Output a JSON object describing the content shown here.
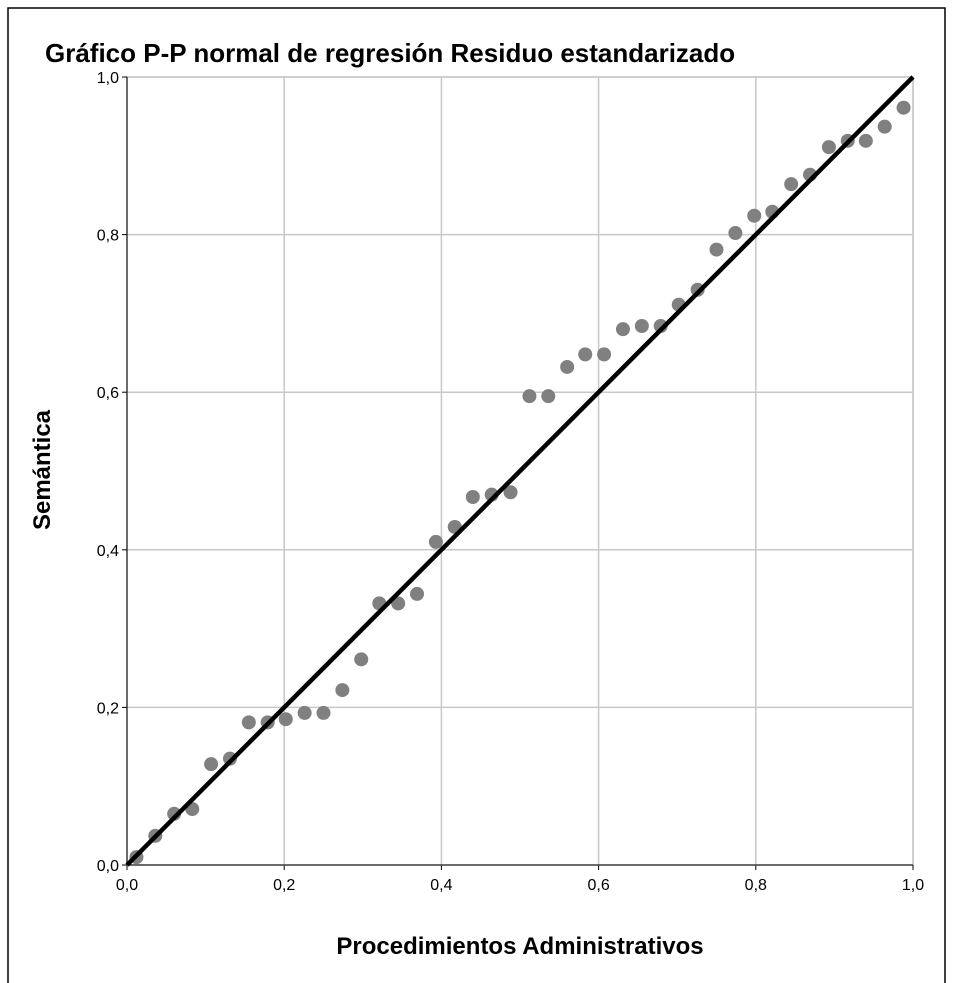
{
  "chart_data": {
    "type": "scatter",
    "title": "Gráfico P-P normal de regresión Residuo estandarizado",
    "xlabel": "Procedimientos Administrativos",
    "ylabel": "Semántica",
    "color": "#808080",
    "grid": true,
    "xlim": [
      0,
      1
    ],
    "ylim": [
      0,
      1
    ],
    "xticks": [
      {
        "value": 0,
        "label": "0,0"
      },
      {
        "value": 0.2,
        "label": "0,2"
      },
      {
        "value": 0.4,
        "label": "0,4"
      },
      {
        "value": 0.6,
        "label": "0,6"
      },
      {
        "value": 0.8,
        "label": "0,8"
      },
      {
        "value": 1,
        "label": "1,0"
      }
    ],
    "yticks": [
      {
        "value": 0,
        "label": "0,0"
      },
      {
        "value": 0.2,
        "label": "0,2"
      },
      {
        "value": 0.4,
        "label": "0,4"
      },
      {
        "value": 0.6,
        "label": "0,6"
      },
      {
        "value": 0.8,
        "label": "0,8"
      },
      {
        "value": 1,
        "label": "1,0"
      }
    ],
    "x": [
      0.012,
      0.036,
      0.06,
      0.083,
      0.107,
      0.131,
      0.155,
      0.179,
      0.202,
      0.226,
      0.25,
      0.274,
      0.298,
      0.321,
      0.345,
      0.369,
      0.393,
      0.417,
      0.44,
      0.464,
      0.488,
      0.512,
      0.536,
      0.56,
      0.583,
      0.607,
      0.631,
      0.655,
      0.679,
      0.702,
      0.726,
      0.75,
      0.774,
      0.798,
      0.821,
      0.845,
      0.869,
      0.893,
      0.917,
      0.94,
      0.964,
      0.988
    ],
    "values": [
      0.01,
      0.037,
      0.065,
      0.071,
      0.128,
      0.135,
      0.181,
      0.181,
      0.185,
      0.193,
      0.193,
      0.222,
      0.261,
      0.332,
      0.332,
      0.344,
      0.41,
      0.429,
      0.467,
      0.47,
      0.473,
      0.595,
      0.595,
      0.632,
      0.648,
      0.648,
      0.68,
      0.684,
      0.684,
      0.711,
      0.73,
      0.781,
      0.802,
      0.824,
      0.829,
      0.864,
      0.876,
      0.911,
      0.919,
      0.919,
      0.937,
      0.961
    ]
  }
}
